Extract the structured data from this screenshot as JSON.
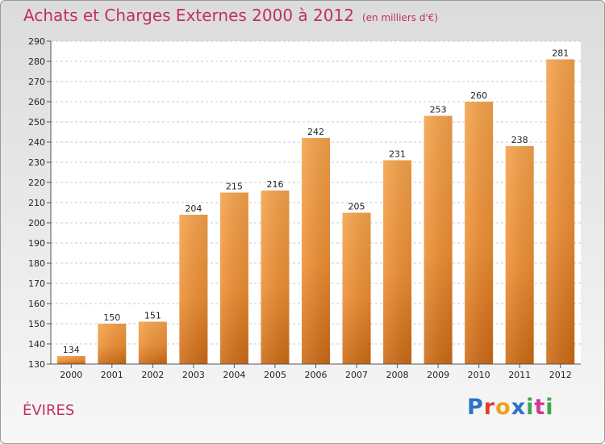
{
  "title": "Achats et Charges Externes 2000 à 2012",
  "subtitle": "(en milliers d'€)",
  "place": "ÉVIRES",
  "logo": {
    "text": "Proxiti",
    "colors": [
      "#2a73c7",
      "#e0402a",
      "#f0a020",
      "#2a73c7",
      "#3aa84a",
      "#d0399a",
      "#3aa84a"
    ]
  },
  "chart_data": {
    "type": "bar",
    "categories": [
      "2000",
      "2001",
      "2002",
      "2003",
      "2004",
      "2005",
      "2006",
      "2007",
      "2008",
      "2009",
      "2010",
      "2011",
      "2012"
    ],
    "values": [
      134,
      150,
      151,
      204,
      215,
      216,
      242,
      205,
      231,
      253,
      260,
      238,
      281
    ],
    "title": "Achats et Charges Externes 2000 à 2012",
    "ylim": [
      130,
      290
    ],
    "yticks": [
      130,
      140,
      150,
      160,
      170,
      180,
      190,
      200,
      210,
      220,
      230,
      240,
      250,
      260,
      270,
      280,
      290
    ],
    "grid": true,
    "bar_color": "#f39a3c"
  }
}
